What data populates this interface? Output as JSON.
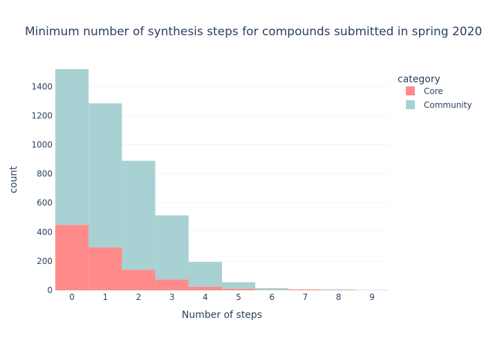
{
  "chart_data": {
    "type": "bar",
    "barmode": "stack",
    "title": "Minimum number of synthesis steps for compounds submitted in spring 2020",
    "xlabel": "Number of steps",
    "ylabel": "count",
    "categories": [
      "0",
      "1",
      "2",
      "3",
      "4",
      "5",
      "6",
      "7",
      "8",
      "9"
    ],
    "ylim": [
      0,
      1520
    ],
    "yticks": [
      0,
      200,
      400,
      600,
      800,
      1000,
      1200,
      1400
    ],
    "grid": true,
    "legend": {
      "title": "category",
      "placement": "top-right"
    },
    "series": [
      {
        "name": "Core",
        "color": "#ff8a8a",
        "values": [
          450,
          295,
          140,
          75,
          25,
          10,
          3,
          6,
          2,
          0
        ]
      },
      {
        "name": "Community",
        "color": "#a8d1d3",
        "values": [
          1070,
          990,
          750,
          440,
          170,
          45,
          12,
          0,
          4,
          2
        ]
      }
    ]
  }
}
